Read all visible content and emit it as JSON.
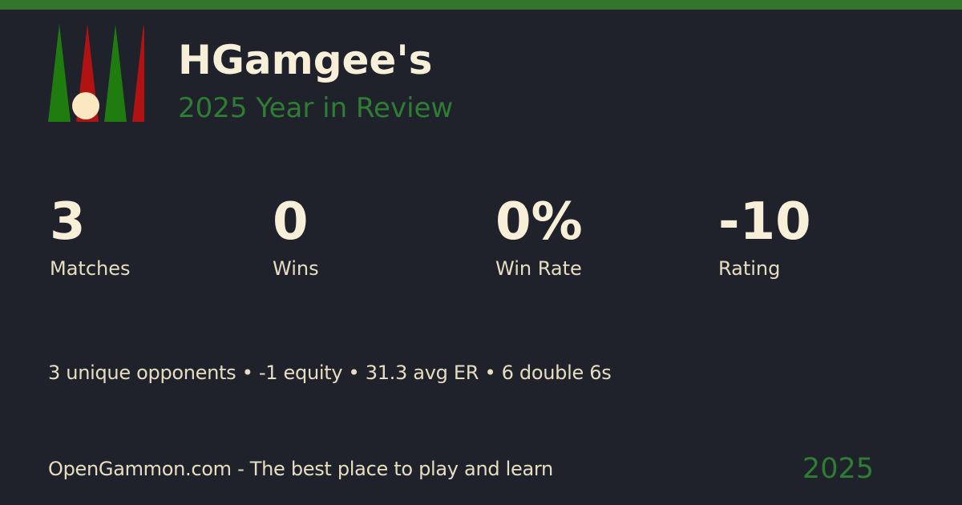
{
  "colors": {
    "background": "#1f222b",
    "top_bar_green": "#33752a",
    "cream": "#f8efd9",
    "cream_dim": "#e7ddc0",
    "text_green": "#2e7d32",
    "logo_green": "#1f7d10",
    "logo_red": "#b11212",
    "checker": "#fbe7c0"
  },
  "header": {
    "title": "HGamgee's",
    "subtitle": "2025 Year in Review"
  },
  "stats": [
    {
      "value": "3",
      "label": "Matches"
    },
    {
      "value": "0",
      "label": "Wins"
    },
    {
      "value": "0%",
      "label": "Win Rate"
    },
    {
      "value": "-10",
      "label": "Rating"
    }
  ],
  "summary": {
    "text": "3 unique opponents • -1 equity • 31.3 avg ER • 6 double 6s"
  },
  "footer": {
    "tagline": "OpenGammon.com - The best place to play and learn",
    "year": "2025"
  }
}
